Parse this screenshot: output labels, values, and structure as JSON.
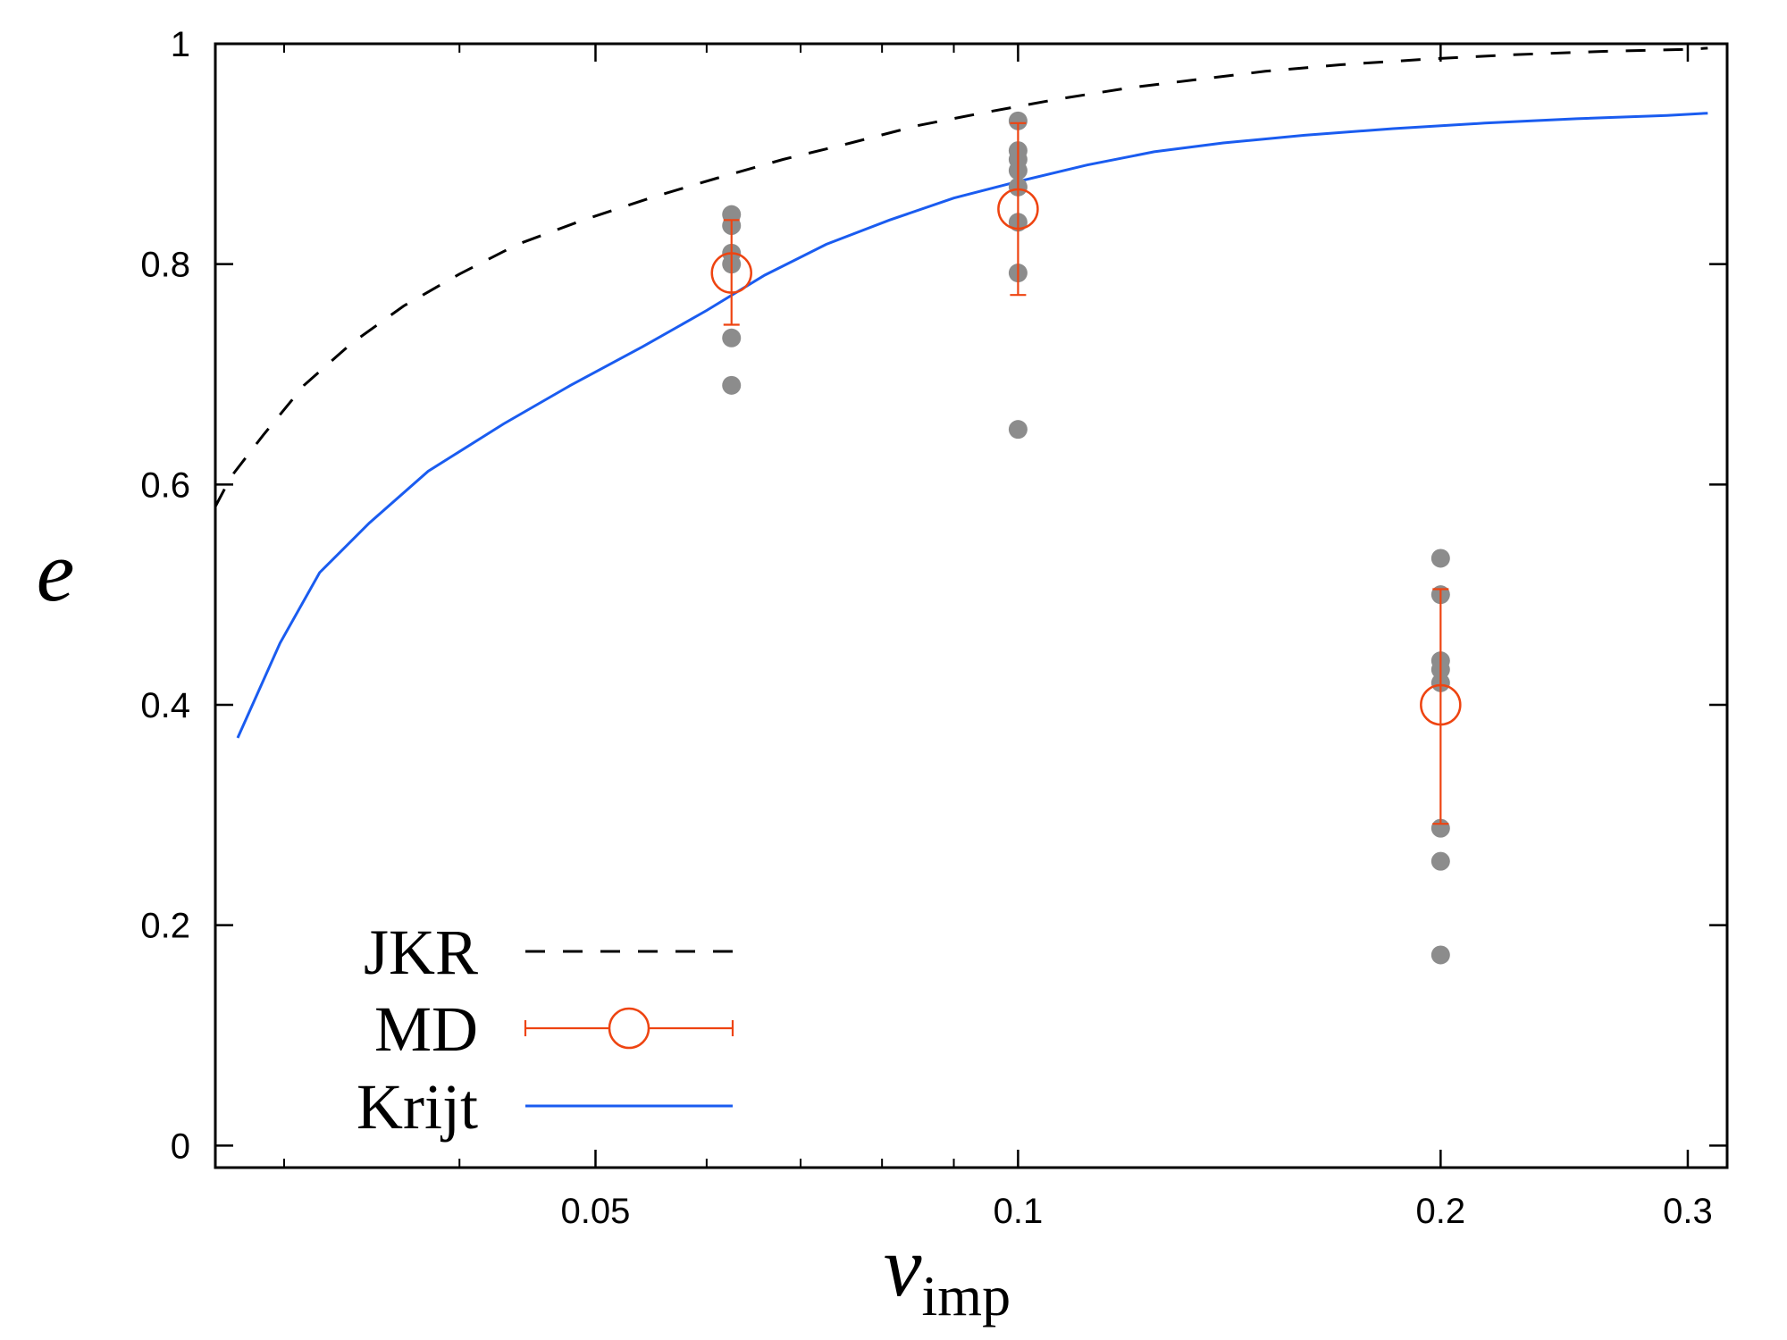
{
  "chart_data": {
    "type": "scatter",
    "xscale": "log",
    "xlim": [
      0.0268,
      0.32
    ],
    "ylim": [
      -0.02,
      1.0
    ],
    "xlabel": "v",
    "xlabel_subscript": "imp",
    "ylabel": "e",
    "xticks": [
      {
        "value": 0.05,
        "label": "0.05"
      },
      {
        "value": 0.1,
        "label": "0.1"
      },
      {
        "value": 0.2,
        "label": "0.2"
      },
      {
        "value": 0.3,
        "label": "0.3"
      }
    ],
    "yticks": [
      {
        "value": 0,
        "label": "0"
      },
      {
        "value": 0.2,
        "label": "0.2"
      },
      {
        "value": 0.4,
        "label": "0.4"
      },
      {
        "value": 0.6,
        "label": "0.6"
      },
      {
        "value": 0.8,
        "label": "0.8"
      },
      {
        "value": 1.0,
        "label": "1"
      }
    ],
    "legend_position": "bottom-left",
    "series": [
      {
        "name": "JKR",
        "style": "dashed-line",
        "color": "#000000",
        "points": [
          [
            0.0268,
            0.58
          ],
          [
            0.0275,
            0.607
          ],
          [
            0.029,
            0.645
          ],
          [
            0.031,
            0.69
          ],
          [
            0.0335,
            0.728
          ],
          [
            0.0365,
            0.762
          ],
          [
            0.04,
            0.791
          ],
          [
            0.044,
            0.818
          ],
          [
            0.049,
            0.84
          ],
          [
            0.055,
            0.861
          ],
          [
            0.061,
            0.878
          ],
          [
            0.068,
            0.895
          ],
          [
            0.076,
            0.91
          ],
          [
            0.085,
            0.926
          ],
          [
            0.095,
            0.938
          ],
          [
            0.107,
            0.95
          ],
          [
            0.12,
            0.96
          ],
          [
            0.135,
            0.968
          ],
          [
            0.15,
            0.975
          ],
          [
            0.17,
            0.981
          ],
          [
            0.195,
            0.986
          ],
          [
            0.225,
            0.99
          ],
          [
            0.26,
            0.993
          ],
          [
            0.3,
            0.995
          ],
          [
            0.31,
            0.996
          ]
        ]
      },
      {
        "name": "Krijt",
        "style": "solid-line",
        "color": "#1a5cf0",
        "points": [
          [
            0.0278,
            0.37
          ],
          [
            0.0298,
            0.456
          ],
          [
            0.0318,
            0.52
          ],
          [
            0.0345,
            0.565
          ],
          [
            0.038,
            0.612
          ],
          [
            0.043,
            0.655
          ],
          [
            0.048,
            0.69
          ],
          [
            0.054,
            0.725
          ],
          [
            0.06,
            0.758
          ],
          [
            0.066,
            0.79
          ],
          [
            0.073,
            0.818
          ],
          [
            0.081,
            0.84
          ],
          [
            0.09,
            0.86
          ],
          [
            0.1,
            0.875
          ],
          [
            0.112,
            0.89
          ],
          [
            0.125,
            0.902
          ],
          [
            0.14,
            0.91
          ],
          [
            0.16,
            0.917
          ],
          [
            0.185,
            0.923
          ],
          [
            0.215,
            0.928
          ],
          [
            0.25,
            0.932
          ],
          [
            0.29,
            0.935
          ],
          [
            0.31,
            0.937
          ]
        ]
      },
      {
        "name": "MD",
        "style": "open-circle-errorbar",
        "color": "#ee4411",
        "points": [
          {
            "x": 0.0625,
            "y": 0.792,
            "err_lo": 0.745,
            "err_hi": 0.84
          },
          {
            "x": 0.1,
            "y": 0.85,
            "err_lo": 0.772,
            "err_hi": 0.928
          },
          {
            "x": 0.2,
            "y": 0.4,
            "err_lo": 0.292,
            "err_hi": 0.505
          }
        ]
      },
      {
        "name": "MD samples",
        "style": "filled-dot",
        "color": "#8c8c8c",
        "in_legend": false,
        "points": [
          [
            0.0625,
            0.845
          ],
          [
            0.0625,
            0.835
          ],
          [
            0.0625,
            0.81
          ],
          [
            0.0625,
            0.8
          ],
          [
            0.0625,
            0.733
          ],
          [
            0.0625,
            0.69
          ],
          [
            0.1,
            0.93
          ],
          [
            0.1,
            0.903
          ],
          [
            0.1,
            0.895
          ],
          [
            0.1,
            0.885
          ],
          [
            0.1,
            0.87
          ],
          [
            0.1,
            0.838
          ],
          [
            0.1,
            0.792
          ],
          [
            0.1,
            0.65
          ],
          [
            0.2,
            0.533
          ],
          [
            0.2,
            0.5
          ],
          [
            0.2,
            0.44
          ],
          [
            0.2,
            0.432
          ],
          [
            0.2,
            0.42
          ],
          [
            0.2,
            0.288
          ],
          [
            0.2,
            0.258
          ],
          [
            0.2,
            0.173
          ]
        ]
      }
    ],
    "legend": [
      {
        "label": "JKR",
        "series": "JKR"
      },
      {
        "label": "MD",
        "series": "MD"
      },
      {
        "label": "Krijt",
        "series": "Krijt"
      }
    ]
  }
}
